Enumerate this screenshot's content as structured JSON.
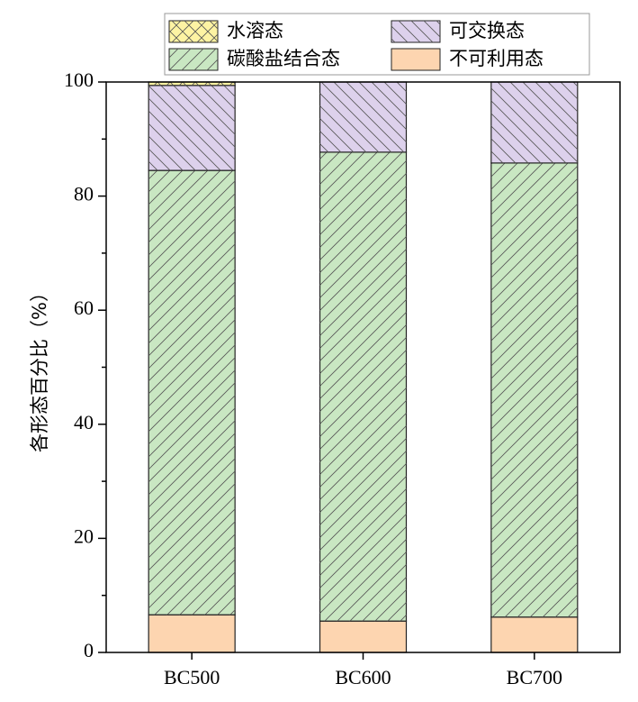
{
  "chart_data": {
    "type": "stacked_bar",
    "y_label": "各形态百分比（%）",
    "categories": [
      "BC500",
      "BC600",
      "BC700"
    ],
    "series": [
      {
        "name": "不可利用态",
        "color": "#fdd5b0",
        "values": [
          6.6,
          5.5,
          6.2
        ]
      },
      {
        "name": "碳酸盐结合态",
        "color": "#c9e7c2",
        "values": [
          77.9,
          82.2,
          79.6
        ]
      },
      {
        "name": "可交换态",
        "color": "#ddd1ec",
        "values": [
          14.9,
          12.3,
          14.2
        ]
      },
      {
        "name": "水溶态",
        "color": "#fdf3a3",
        "values": [
          0.6,
          0,
          0
        ]
      }
    ],
    "ylim": [
      0,
      100
    ],
    "yticks": [
      0,
      20,
      40,
      60,
      80,
      100
    ]
  }
}
